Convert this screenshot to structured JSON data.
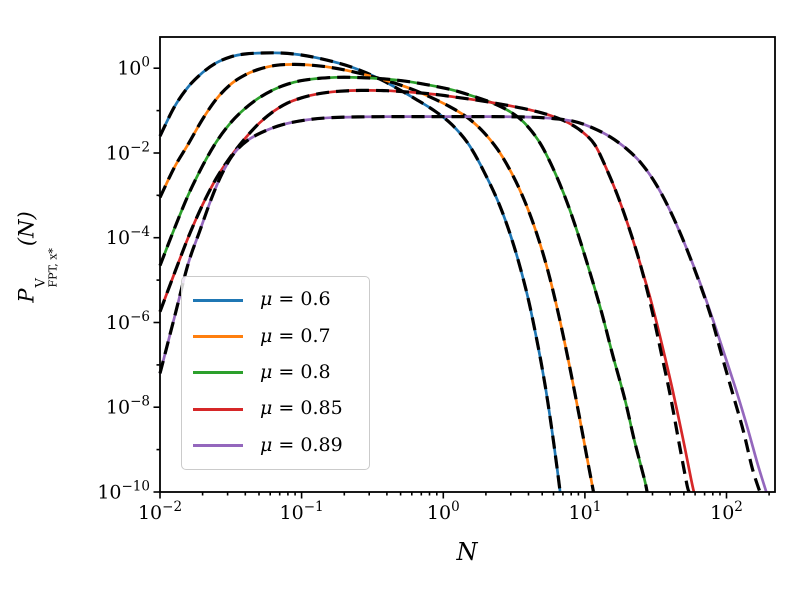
{
  "chart_data": {
    "type": "line",
    "xscale": "log",
    "yscale": "log",
    "xlim": [
      0.01,
      220
    ],
    "ylim": [
      1e-10,
      5.45
    ],
    "grid": false,
    "xlabel": "N",
    "ylabel": {
      "base": "P",
      "sup": "V",
      "sub": "FPT, x*",
      "arg": "(N)"
    },
    "x_tick_exponents": [
      -2,
      -1,
      0,
      1,
      2
    ],
    "y_tick_exponents": [
      0,
      -2,
      -4,
      -6,
      -8,
      -10
    ],
    "y_minor_tick_exponents": [
      -1,
      -3,
      -5,
      -7,
      -9
    ],
    "theory_color": "#000000",
    "legend": {
      "position": "center-left",
      "entries": [
        {
          "label": "μ = 0.6",
          "color": "#1f77b4"
        },
        {
          "label": "μ = 0.7",
          "color": "#ff7f0e"
        },
        {
          "label": "μ = 0.8",
          "color": "#2ca02c"
        },
        {
          "label": "μ = 0.85",
          "color": "#d62728"
        },
        {
          "label": "μ = 0.89",
          "color": "#9467bd"
        }
      ]
    },
    "series": [
      {
        "name": "mu-0.6",
        "mu": 0.6,
        "color": "#1f77b4",
        "line": "solid",
        "theory_overlay_dashed": true,
        "points": [
          [
            0.01,
            0.025
          ],
          [
            0.0126,
            0.12
          ],
          [
            0.0158,
            0.36
          ],
          [
            0.02,
            0.79
          ],
          [
            0.0251,
            1.35
          ],
          [
            0.0316,
            1.86
          ],
          [
            0.0398,
            2.16
          ],
          [
            0.0525,
            2.29
          ],
          [
            0.0708,
            2.29
          ],
          [
            0.0955,
            2.09
          ],
          [
            0.126,
            1.78
          ],
          [
            0.166,
            1.43
          ],
          [
            0.219,
            1.1
          ],
          [
            0.288,
            0.77
          ],
          [
            0.38,
            0.5
          ],
          [
            0.501,
            0.3
          ],
          [
            0.661,
            0.174
          ],
          [
            0.871,
            0.098
          ],
          [
            1.15,
            0.047
          ],
          [
            1.51,
            0.016
          ],
          [
            1.95,
            0.0035
          ],
          [
            2.51,
            0.00056
          ],
          [
            3.16,
            6.3e-05
          ],
          [
            3.89,
            5e-06
          ],
          [
            4.57,
            4e-07
          ],
          [
            5.25,
            3.2e-08
          ],
          [
            5.89,
            2.5e-09
          ],
          [
            6.46,
            2.5e-10
          ],
          [
            6.68,
            1e-10
          ]
        ]
      },
      {
        "name": "mu-0.7",
        "mu": 0.7,
        "color": "#ff7f0e",
        "line": "solid",
        "theory_overlay_dashed": true,
        "points": [
          [
            0.01,
            0.00089
          ],
          [
            0.0126,
            0.0045
          ],
          [
            0.0158,
            0.016
          ],
          [
            0.02,
            0.063
          ],
          [
            0.0251,
            0.19
          ],
          [
            0.0316,
            0.42
          ],
          [
            0.0398,
            0.69
          ],
          [
            0.0501,
            0.95
          ],
          [
            0.0661,
            1.17
          ],
          [
            0.0891,
            1.23
          ],
          [
            0.12,
            1.17
          ],
          [
            0.158,
            1.05
          ],
          [
            0.209,
            0.89
          ],
          [
            0.275,
            0.72
          ],
          [
            0.363,
            0.56
          ],
          [
            0.479,
            0.42
          ],
          [
            0.631,
            0.3
          ],
          [
            0.832,
            0.2
          ],
          [
            1.1,
            0.126
          ],
          [
            1.45,
            0.072
          ],
          [
            1.86,
            0.035
          ],
          [
            2.4,
            0.0126
          ],
          [
            3.02,
            0.0035
          ],
          [
            3.72,
            0.00079
          ],
          [
            4.57,
            0.000126
          ],
          [
            5.5,
            1.6e-05
          ],
          [
            6.61,
            1.26e-06
          ],
          [
            7.76,
            1e-07
          ],
          [
            9.12,
            6.3e-09
          ],
          [
            10.5,
            5e-10
          ],
          [
            11.5,
            1e-10
          ]
        ]
      },
      {
        "name": "mu-0.8",
        "mu": 0.8,
        "color": "#2ca02c",
        "line": "solid",
        "theory_overlay_dashed": true,
        "points": [
          [
            0.01,
            2.2e-05
          ],
          [
            0.0126,
            0.00016
          ],
          [
            0.0158,
            0.001
          ],
          [
            0.02,
            0.005
          ],
          [
            0.0251,
            0.0186
          ],
          [
            0.0316,
            0.052
          ],
          [
            0.0398,
            0.112
          ],
          [
            0.0501,
            0.2
          ],
          [
            0.0631,
            0.31
          ],
          [
            0.0794,
            0.42
          ],
          [
            0.1,
            0.51
          ],
          [
            0.132,
            0.575
          ],
          [
            0.182,
            0.61
          ],
          [
            0.263,
            0.6
          ],
          [
            0.38,
            0.56
          ],
          [
            0.55,
            0.49
          ],
          [
            0.794,
            0.4
          ],
          [
            1.15,
            0.31
          ],
          [
            1.62,
            0.22
          ],
          [
            2.24,
            0.15
          ],
          [
            2.95,
            0.095
          ],
          [
            3.72,
            0.052
          ],
          [
            4.68,
            0.02
          ],
          [
            5.75,
            0.0056
          ],
          [
            7.08,
            0.00112
          ],
          [
            8.71,
            0.00016
          ],
          [
            10.7,
            1.8e-05
          ],
          [
            13.2,
            1.6e-06
          ],
          [
            15.8,
            1.6e-07
          ],
          [
            19.1,
            1.6e-08
          ],
          [
            22.4,
            1.6e-09
          ],
          [
            26.3,
            2e-10
          ],
          [
            27.5,
            1e-10
          ]
        ]
      },
      {
        "name": "mu-0.85",
        "mu": 0.85,
        "color": "#d62728",
        "line": "solid",
        "theory_overlay_dashed": true,
        "points": [
          [
            0.01,
            1.8e-06
          ],
          [
            0.0126,
            1.4e-05
          ],
          [
            0.0158,
            0.0001
          ],
          [
            0.02,
            0.0006
          ],
          [
            0.0251,
            0.0026
          ],
          [
            0.0316,
            0.0083
          ],
          [
            0.0398,
            0.022
          ],
          [
            0.0501,
            0.05
          ],
          [
            0.0631,
            0.095
          ],
          [
            0.0794,
            0.15
          ],
          [
            0.1,
            0.2
          ],
          [
            0.132,
            0.25
          ],
          [
            0.182,
            0.285
          ],
          [
            0.263,
            0.3
          ],
          [
            0.398,
            0.295
          ],
          [
            0.603,
            0.27
          ],
          [
            0.891,
            0.24
          ],
          [
            1.32,
            0.2
          ],
          [
            1.95,
            0.166
          ],
          [
            2.88,
            0.132
          ],
          [
            4.17,
            0.102
          ],
          [
            5.75,
            0.076
          ],
          [
            7.59,
            0.052
          ],
          [
            9.55,
            0.032
          ],
          [
            11.7,
            0.016
          ],
          [
            14.1,
            0.0045
          ],
          [
            17,
            0.001
          ],
          [
            20.4,
            0.00018
          ],
          [
            24.5,
            2.5e-05
          ],
          [
            29.5,
            3e-06
          ],
          [
            35.5,
            2.5e-07
          ],
          [
            41.7,
            2.5e-08
          ],
          [
            49,
            2e-09
          ],
          [
            56.2,
            2e-10
          ],
          [
            58.9,
            1e-10
          ]
        ],
        "theory_points": [
          [
            0.01,
            1.8e-06
          ],
          [
            0.0126,
            1.4e-05
          ],
          [
            0.0158,
            0.0001
          ],
          [
            0.02,
            0.0006
          ],
          [
            0.0251,
            0.0026
          ],
          [
            0.0316,
            0.0083
          ],
          [
            0.0398,
            0.022
          ],
          [
            0.0501,
            0.05
          ],
          [
            0.0631,
            0.095
          ],
          [
            0.0794,
            0.15
          ],
          [
            0.1,
            0.2
          ],
          [
            0.132,
            0.25
          ],
          [
            0.182,
            0.285
          ],
          [
            0.263,
            0.3
          ],
          [
            0.398,
            0.295
          ],
          [
            0.603,
            0.27
          ],
          [
            0.891,
            0.24
          ],
          [
            1.32,
            0.2
          ],
          [
            1.95,
            0.166
          ],
          [
            2.88,
            0.132
          ],
          [
            4.17,
            0.102
          ],
          [
            5.75,
            0.076
          ],
          [
            7.59,
            0.052
          ],
          [
            9.55,
            0.032
          ],
          [
            11.7,
            0.016
          ],
          [
            14.1,
            0.0045
          ],
          [
            17,
            0.001
          ],
          [
            20.4,
            0.00018
          ],
          [
            24.5,
            2.5e-05
          ],
          [
            29.5,
            2.2e-06
          ],
          [
            35,
            1.6e-07
          ],
          [
            40.5,
            1.6e-08
          ],
          [
            46.5,
            1.3e-09
          ],
          [
            52.5,
            1.5e-10
          ],
          [
            54.5,
            1e-10
          ]
        ]
      },
      {
        "name": "mu-0.89",
        "mu": 0.89,
        "color": "#9467bd",
        "line": "solid",
        "theory_overlay_dashed": true,
        "points": [
          [
            0.01,
            6.3e-08
          ],
          [
            0.0126,
            1.26e-06
          ],
          [
            0.0158,
            2.4e-05
          ],
          [
            0.0191,
            0.000145
          ],
          [
            0.0229,
            0.00079
          ],
          [
            0.0275,
            0.0033
          ],
          [
            0.0331,
            0.0095
          ],
          [
            0.0417,
            0.02
          ],
          [
            0.055,
            0.033
          ],
          [
            0.0759,
            0.048
          ],
          [
            0.107,
            0.06
          ],
          [
            0.158,
            0.068
          ],
          [
            0.251,
            0.071
          ],
          [
            0.447,
            0.072
          ],
          [
            0.891,
            0.072
          ],
          [
            1.78,
            0.072
          ],
          [
            3.55,
            0.071
          ],
          [
            5.62,
            0.066
          ],
          [
            8.32,
            0.056
          ],
          [
            11.2,
            0.04
          ],
          [
            15.1,
            0.024
          ],
          [
            20,
            0.012
          ],
          [
            25.1,
            0.0056
          ],
          [
            31.6,
            0.0019
          ],
          [
            39.8,
            0.00045
          ],
          [
            50.1,
            7.9e-05
          ],
          [
            63.1,
            1.12e-05
          ],
          [
            77.6,
            1.6e-06
          ],
          [
            95.5,
            2e-07
          ],
          [
            117,
            2.5e-08
          ],
          [
            141,
            3.2e-09
          ],
          [
            166,
            4.5e-10
          ],
          [
            191,
            1e-10
          ]
        ],
        "theory_points": [
          [
            0.01,
            6.3e-08
          ],
          [
            0.0126,
            1.26e-06
          ],
          [
            0.0158,
            2.4e-05
          ],
          [
            0.0191,
            0.000145
          ],
          [
            0.0229,
            0.00079
          ],
          [
            0.0275,
            0.0033
          ],
          [
            0.0331,
            0.0095
          ],
          [
            0.0417,
            0.02
          ],
          [
            0.055,
            0.033
          ],
          [
            0.0759,
            0.048
          ],
          [
            0.107,
            0.06
          ],
          [
            0.158,
            0.068
          ],
          [
            0.251,
            0.071
          ],
          [
            0.447,
            0.072
          ],
          [
            0.891,
            0.072
          ],
          [
            1.78,
            0.072
          ],
          [
            3.55,
            0.071
          ],
          [
            5.62,
            0.066
          ],
          [
            8.32,
            0.056
          ],
          [
            11.2,
            0.04
          ],
          [
            15.1,
            0.024
          ],
          [
            20,
            0.012
          ],
          [
            25.1,
            0.0056
          ],
          [
            31.6,
            0.0019
          ],
          [
            39.8,
            0.00045
          ],
          [
            50.1,
            7.9e-05
          ],
          [
            63.1,
            1.05e-05
          ],
          [
            77.6,
            1.4e-06
          ],
          [
            93,
            1.6e-07
          ],
          [
            112,
            1.8e-08
          ],
          [
            132,
            2.6e-09
          ],
          [
            152,
            3.6e-10
          ],
          [
            172,
            1e-10
          ]
        ]
      }
    ]
  }
}
